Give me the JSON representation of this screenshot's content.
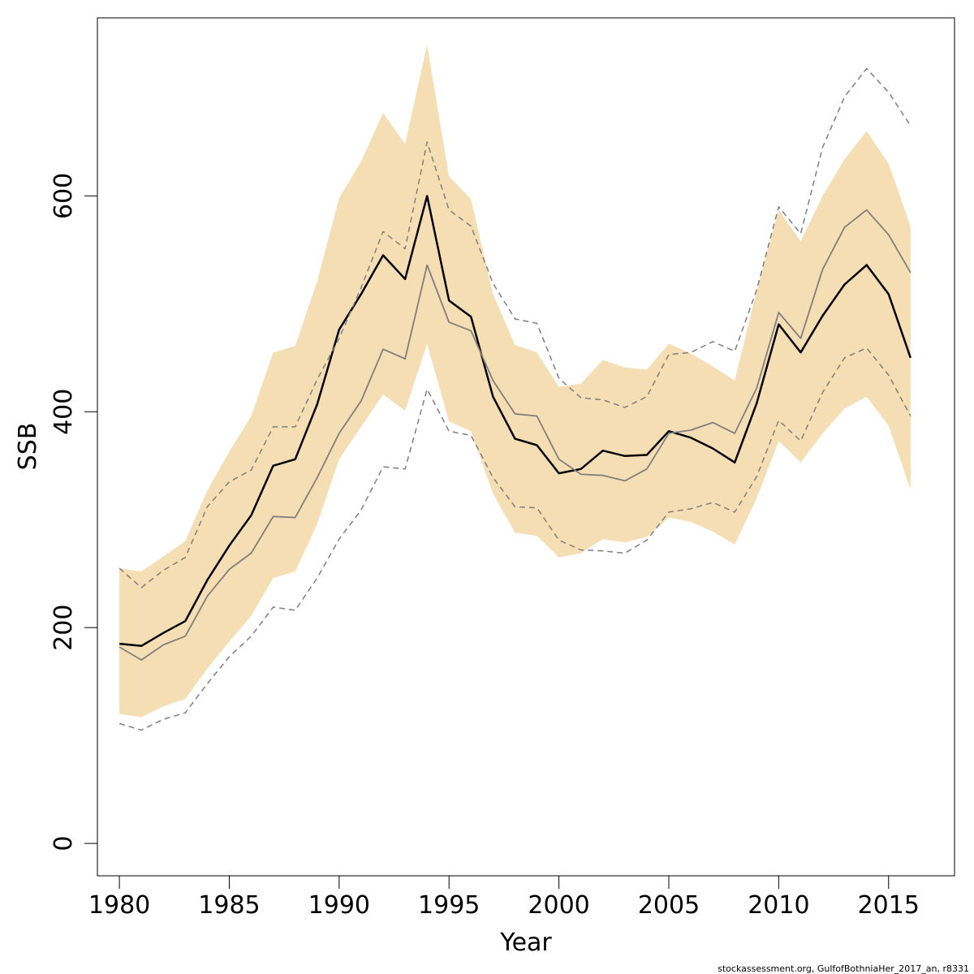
{
  "chart_data": {
    "type": "line",
    "xlabel": "Year",
    "ylabel": "SSB",
    "xlim": [
      1979,
      2018
    ],
    "ylim": [
      -30,
      765
    ],
    "x_ticks": [
      1980,
      1985,
      1990,
      1995,
      2000,
      2005,
      2010,
      2015
    ],
    "y_ticks": [
      0,
      200,
      400,
      600
    ],
    "grid": false,
    "legend": "none",
    "x": [
      1980,
      1981,
      1982,
      1983,
      1984,
      1985,
      1986,
      1987,
      1988,
      1989,
      1990,
      1991,
      1992,
      1993,
      1994,
      1995,
      1996,
      1997,
      1998,
      1999,
      2000,
      2001,
      2002,
      2003,
      2004,
      2005,
      2006,
      2007,
      2008,
      2009,
      2010,
      2011,
      2012,
      2013,
      2014,
      2015,
      2016
    ],
    "band": {
      "color": "#f5deb3",
      "upper": [
        255,
        252,
        266,
        280,
        327,
        363,
        396,
        455,
        461,
        521,
        598,
        632,
        677,
        648,
        740,
        618,
        597,
        509,
        462,
        455,
        423,
        426,
        448,
        441,
        439,
        463,
        454,
        442,
        429,
        512,
        587,
        558,
        600,
        634,
        660,
        630,
        572
      ],
      "lower": [
        120,
        117,
        127,
        134,
        162,
        187,
        211,
        246,
        252,
        296,
        356,
        386,
        416,
        401,
        463,
        391,
        382,
        324,
        288,
        285,
        265,
        269,
        282,
        279,
        284,
        302,
        298,
        289,
        277,
        320,
        373,
        353,
        380,
        403,
        414,
        387,
        328
      ]
    },
    "series": [
      {
        "color": "#000000",
        "width": 2.5,
        "dash": "",
        "values": [
          185,
          183,
          195,
          206,
          244,
          276,
          304,
          350,
          356,
          407,
          476,
          509,
          545,
          523,
          600,
          503,
          488,
          414,
          375,
          369,
          343,
          347,
          364,
          359,
          360,
          382,
          376,
          366,
          353,
          408,
          481,
          455,
          489,
          518,
          536,
          509,
          450
        ]
      },
      {
        "color": "#7f7f7f",
        "width": 1.8,
        "dash": "",
        "values": [
          182,
          170,
          184,
          192,
          229,
          254,
          269,
          303,
          302,
          339,
          380,
          410,
          458,
          449,
          536,
          483,
          475,
          429,
          398,
          396,
          356,
          342,
          341,
          336,
          347,
          380,
          383,
          390,
          380,
          422,
          492,
          468,
          532,
          571,
          587,
          564,
          529
        ]
      },
      {
        "color": "#7f7f7f",
        "width": 1.5,
        "dash": "7,5",
        "values": [
          255,
          237,
          253,
          265,
          312,
          335,
          346,
          386,
          386,
          430,
          468,
          515,
          567,
          551,
          650,
          587,
          572,
          519,
          486,
          482,
          431,
          413,
          411,
          404,
          414,
          453,
          455,
          465,
          456,
          513,
          590,
          565,
          645,
          692,
          718,
          696,
          665
        ]
      },
      {
        "color": "#7f7f7f",
        "width": 1.5,
        "dash": "7,5",
        "values": [
          111,
          105,
          115,
          121,
          148,
          173,
          192,
          219,
          216,
          246,
          282,
          309,
          349,
          347,
          421,
          382,
          378,
          339,
          312,
          311,
          281,
          272,
          271,
          269,
          281,
          307,
          310,
          316,
          307,
          340,
          392,
          373,
          418,
          450,
          459,
          434,
          396
        ]
      }
    ]
  },
  "footer_text": "stockassessment.org, GulfofBothniaHer_2017_an, r8331"
}
